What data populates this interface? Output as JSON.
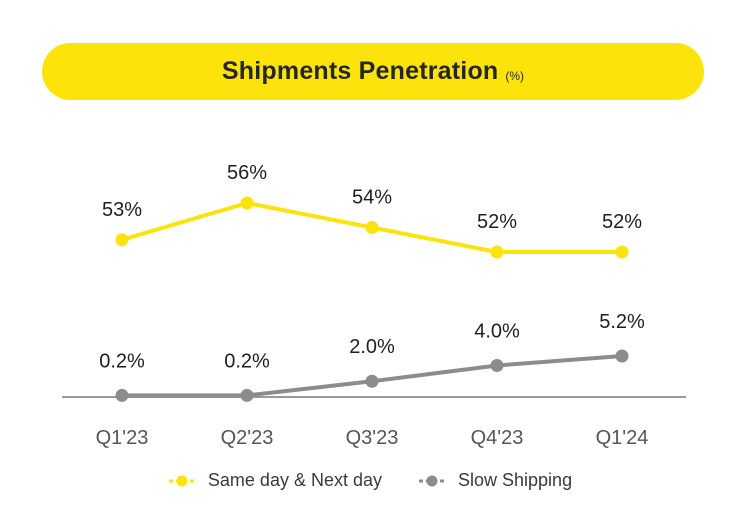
{
  "header": {
    "title": "Shipments Penetration",
    "unit": "(%)"
  },
  "chart_data": {
    "type": "line",
    "categories": [
      "Q1'23",
      "Q2'23",
      "Q3'23",
      "Q4'23",
      "Q1'24"
    ],
    "series": [
      {
        "name": "Same day & Next day",
        "values": [
          53,
          56,
          54,
          52,
          52
        ],
        "labels": [
          "53%",
          "56%",
          "54%",
          "52%",
          "52%"
        ],
        "color": "#fde30c"
      },
      {
        "name": "Slow Shipping",
        "values": [
          0.2,
          0.2,
          2.0,
          4.0,
          5.2
        ],
        "labels": [
          "0.2%",
          "0.2%",
          "2.0%",
          "4.0%",
          "5.2%"
        ],
        "color": "#8c8c8c"
      }
    ],
    "legend_position": "bottom",
    "grid": false
  },
  "colors": {
    "accent": "#fde30c",
    "secondary": "#8c8c8c",
    "axis": "#9a9a9a"
  }
}
